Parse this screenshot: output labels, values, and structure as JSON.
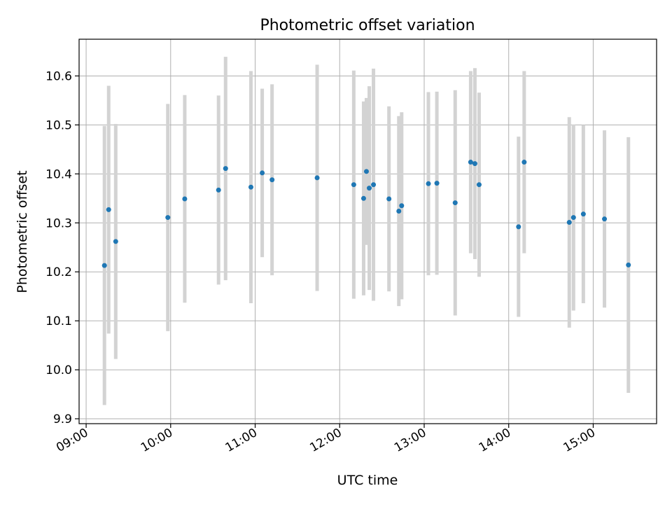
{
  "chart_data": {
    "type": "scatter",
    "title": "Photometric offset variation",
    "xlabel": "UTC time",
    "ylabel": "Photometric offset",
    "xlim": [
      "08:55",
      "15:45"
    ],
    "ylim": [
      9.89,
      10.675
    ],
    "x_ticks": [
      "09:00",
      "10:00",
      "11:00",
      "12:00",
      "13:00",
      "14:00",
      "15:00"
    ],
    "y_ticks": [
      "9.9",
      "10.0",
      "10.1",
      "10.2",
      "10.3",
      "10.4",
      "10.5",
      "10.6"
    ],
    "grid": true,
    "legend": "none",
    "colors": {
      "marker": "#1f77b4",
      "errorbar": "#d3d3d3",
      "grid": "#b0b0b0"
    },
    "points": [
      {
        "t": "09:13",
        "y": 10.213,
        "err": 0.285
      },
      {
        "t": "09:16",
        "y": 10.327,
        "err": 0.253
      },
      {
        "t": "09:21",
        "y": 10.262,
        "err": 0.24
      },
      {
        "t": "09:58",
        "y": 10.311,
        "err": 0.232
      },
      {
        "t": "10:10",
        "y": 10.349,
        "err": 0.212
      },
      {
        "t": "10:34",
        "y": 10.367,
        "err": 0.193
      },
      {
        "t": "10:39",
        "y": 10.411,
        "err": 0.228
      },
      {
        "t": "10:57",
        "y": 10.373,
        "err": 0.237
      },
      {
        "t": "11:05",
        "y": 10.402,
        "err": 0.172
      },
      {
        "t": "11:12",
        "y": 10.388,
        "err": 0.195
      },
      {
        "t": "11:44",
        "y": 10.392,
        "err": 0.231
      },
      {
        "t": "12:10",
        "y": 10.378,
        "err": 0.233
      },
      {
        "t": "12:17",
        "y": 10.35,
        "err": 0.198
      },
      {
        "t": "12:19",
        "y": 10.405,
        "err": 0.15
      },
      {
        "t": "12:21",
        "y": 10.371,
        "err": 0.208
      },
      {
        "t": "12:24",
        "y": 10.378,
        "err": 0.237
      },
      {
        "t": "12:35",
        "y": 10.349,
        "err": 0.189
      },
      {
        "t": "12:42",
        "y": 10.324,
        "err": 0.194
      },
      {
        "t": "12:44",
        "y": 10.335,
        "err": 0.191
      },
      {
        "t": "13:03",
        "y": 10.38,
        "err": 0.187
      },
      {
        "t": "13:09",
        "y": 10.381,
        "err": 0.187
      },
      {
        "t": "13:22",
        "y": 10.341,
        "err": 0.23
      },
      {
        "t": "13:33",
        "y": 10.424,
        "err": 0.186
      },
      {
        "t": "13:36",
        "y": 10.421,
        "err": 0.195
      },
      {
        "t": "13:39",
        "y": 10.378,
        "err": 0.188
      },
      {
        "t": "14:07",
        "y": 10.292,
        "err": 0.184
      },
      {
        "t": "14:11",
        "y": 10.424,
        "err": 0.186
      },
      {
        "t": "14:43",
        "y": 10.301,
        "err": 0.215
      },
      {
        "t": "14:46",
        "y": 10.311,
        "err": 0.19
      },
      {
        "t": "14:53",
        "y": 10.318,
        "err": 0.182
      },
      {
        "t": "15:08",
        "y": 10.308,
        "err": 0.181
      },
      {
        "t": "15:25",
        "y": 10.214,
        "err": 0.261
      }
    ]
  }
}
